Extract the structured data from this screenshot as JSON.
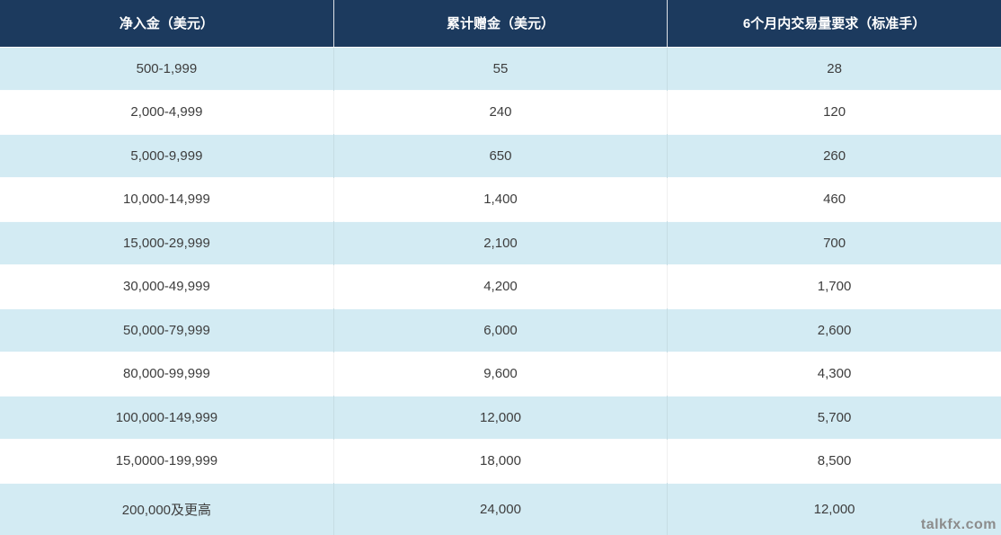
{
  "chart_data": {
    "type": "table",
    "title": "",
    "columns": [
      "净入金（美元）",
      "累计赠金（美元）",
      "6个月内交易量要求（标准手）"
    ],
    "rows": [
      [
        "500-1,999",
        "55",
        "28"
      ],
      [
        "2,000-4,999",
        "240",
        "120"
      ],
      [
        "5,000-9,999",
        "650",
        "260"
      ],
      [
        "10,000-14,999",
        "1,400",
        "460"
      ],
      [
        "15,000-29,999",
        "2,100",
        "700"
      ],
      [
        "30,000-49,999",
        "4,200",
        "1,700"
      ],
      [
        "50,000-79,999",
        "6,000",
        "2,600"
      ],
      [
        "80,000-99,999",
        "9,600",
        "4,300"
      ],
      [
        "100,000-149,999",
        "12,000",
        "5,700"
      ],
      [
        "15,0000-199,999",
        "18,000",
        "8,500"
      ],
      [
        "200,000及更高",
        "24,000",
        "12,000"
      ]
    ]
  },
  "table": {
    "columns": [
      {
        "label": "净入金（美元）"
      },
      {
        "label": "累计赠金（美元）"
      },
      {
        "label": "6个月内交易量要求（标准手）"
      }
    ],
    "rows": [
      {
        "deposit": "500-1,999",
        "bonus": "55",
        "volume": "28"
      },
      {
        "deposit": "2,000-4,999",
        "bonus": "240",
        "volume": "120"
      },
      {
        "deposit": "5,000-9,999",
        "bonus": "650",
        "volume": "260"
      },
      {
        "deposit": "10,000-14,999",
        "bonus": "1,400",
        "volume": "460"
      },
      {
        "deposit": "15,000-29,999",
        "bonus": "2,100",
        "volume": "700"
      },
      {
        "deposit": "30,000-49,999",
        "bonus": "4,200",
        "volume": "1,700"
      },
      {
        "deposit": "50,000-79,999",
        "bonus": "6,000",
        "volume": "2,600"
      },
      {
        "deposit": "80,000-99,999",
        "bonus": "9,600",
        "volume": "4,300"
      },
      {
        "deposit": "100,000-149,999",
        "bonus": "12,000",
        "volume": "5,700"
      },
      {
        "deposit": "15,0000-199,999",
        "bonus": "18,000",
        "volume": "8,500"
      },
      {
        "deposit": "200,000及更高",
        "bonus": "24,000",
        "volume": "12,000"
      }
    ]
  },
  "watermark": "talkfx.com",
  "colors": {
    "header_bg": "#1c3a5e",
    "header_text": "#ffffff",
    "row_alt_bg": "#d3ebf3",
    "row_bg": "#ffffff",
    "body_text": "#3d3d3d",
    "watermark_text": "#8c8c8c"
  }
}
